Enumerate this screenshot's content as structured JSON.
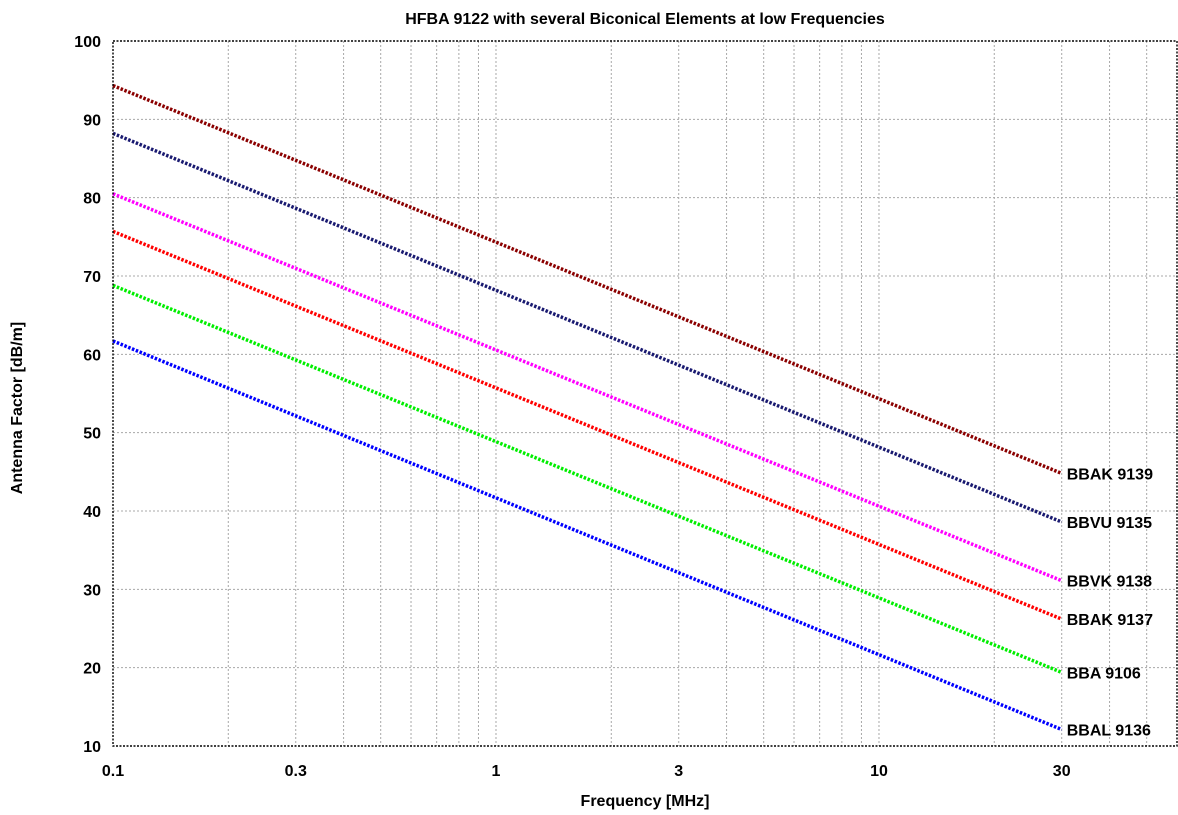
{
  "chart_data": {
    "type": "line",
    "title": "HFBA 9122 with several Biconical Elements at low Frequencies",
    "xlabel": "Frequency [MHz]",
    "ylabel": "Antenna Factor [dB/m]",
    "x_scale": "log",
    "xlim": [
      0.1,
      60
    ],
    "ylim": [
      10,
      100
    ],
    "grid": true,
    "x_ticks": [
      {
        "value": 0.1,
        "label": "0.1"
      },
      {
        "value": 0.3,
        "label": "0.3"
      },
      {
        "value": 1,
        "label": "1"
      },
      {
        "value": 3,
        "label": "3"
      },
      {
        "value": 10,
        "label": "10"
      },
      {
        "value": 30,
        "label": "30"
      }
    ],
    "y_ticks": [
      10,
      20,
      30,
      40,
      50,
      60,
      70,
      80,
      90,
      100
    ],
    "series": [
      {
        "name": "BBAK 9139",
        "color": "#8b0000",
        "x": [
          0.1,
          30
        ],
        "y": [
          94.3,
          44.8
        ]
      },
      {
        "name": "BBVU 9135",
        "color": "#191970",
        "x": [
          0.1,
          30
        ],
        "y": [
          88.2,
          38.6
        ]
      },
      {
        "name": "BBVK 9138",
        "color": "#ff00ff",
        "x": [
          0.1,
          30
        ],
        "y": [
          80.5,
          31.1
        ]
      },
      {
        "name": "BBAK 9137",
        "color": "#ff0000",
        "x": [
          0.1,
          30
        ],
        "y": [
          75.7,
          26.2
        ]
      },
      {
        "name": "BBA 9106",
        "color": "#00ee00",
        "x": [
          0.1,
          30
        ],
        "y": [
          68.8,
          19.4
        ]
      },
      {
        "name": "BBAL 9136",
        "color": "#0000ff",
        "x": [
          0.1,
          30
        ],
        "y": [
          61.7,
          12.1
        ]
      }
    ]
  }
}
